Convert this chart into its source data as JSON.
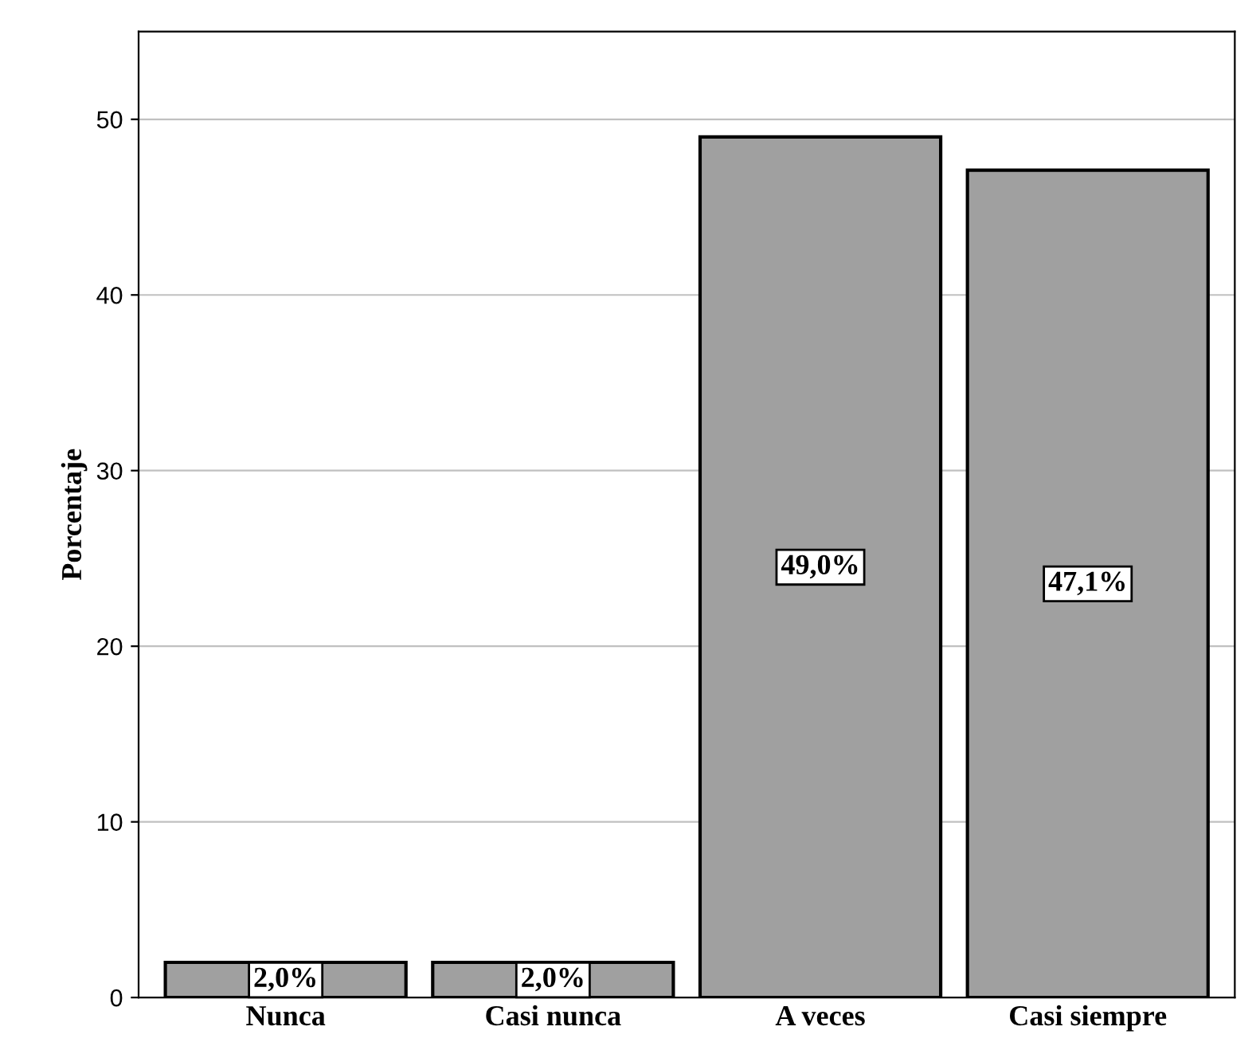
{
  "chart_data": {
    "type": "bar",
    "ylabel": "Porcentaje",
    "categories": [
      "Nunca",
      "Casi nunca",
      "A veces",
      "Casi siempre"
    ],
    "values": [
      2.0,
      2.0,
      49.0,
      47.1
    ],
    "value_labels": [
      "2,0%",
      "2,0%",
      "49,0%",
      "47,1%"
    ],
    "color": "#a0a0a0",
    "ylim": [
      0,
      55
    ],
    "yticks": [
      0,
      10,
      20,
      30,
      40,
      50
    ],
    "grid": "y"
  }
}
